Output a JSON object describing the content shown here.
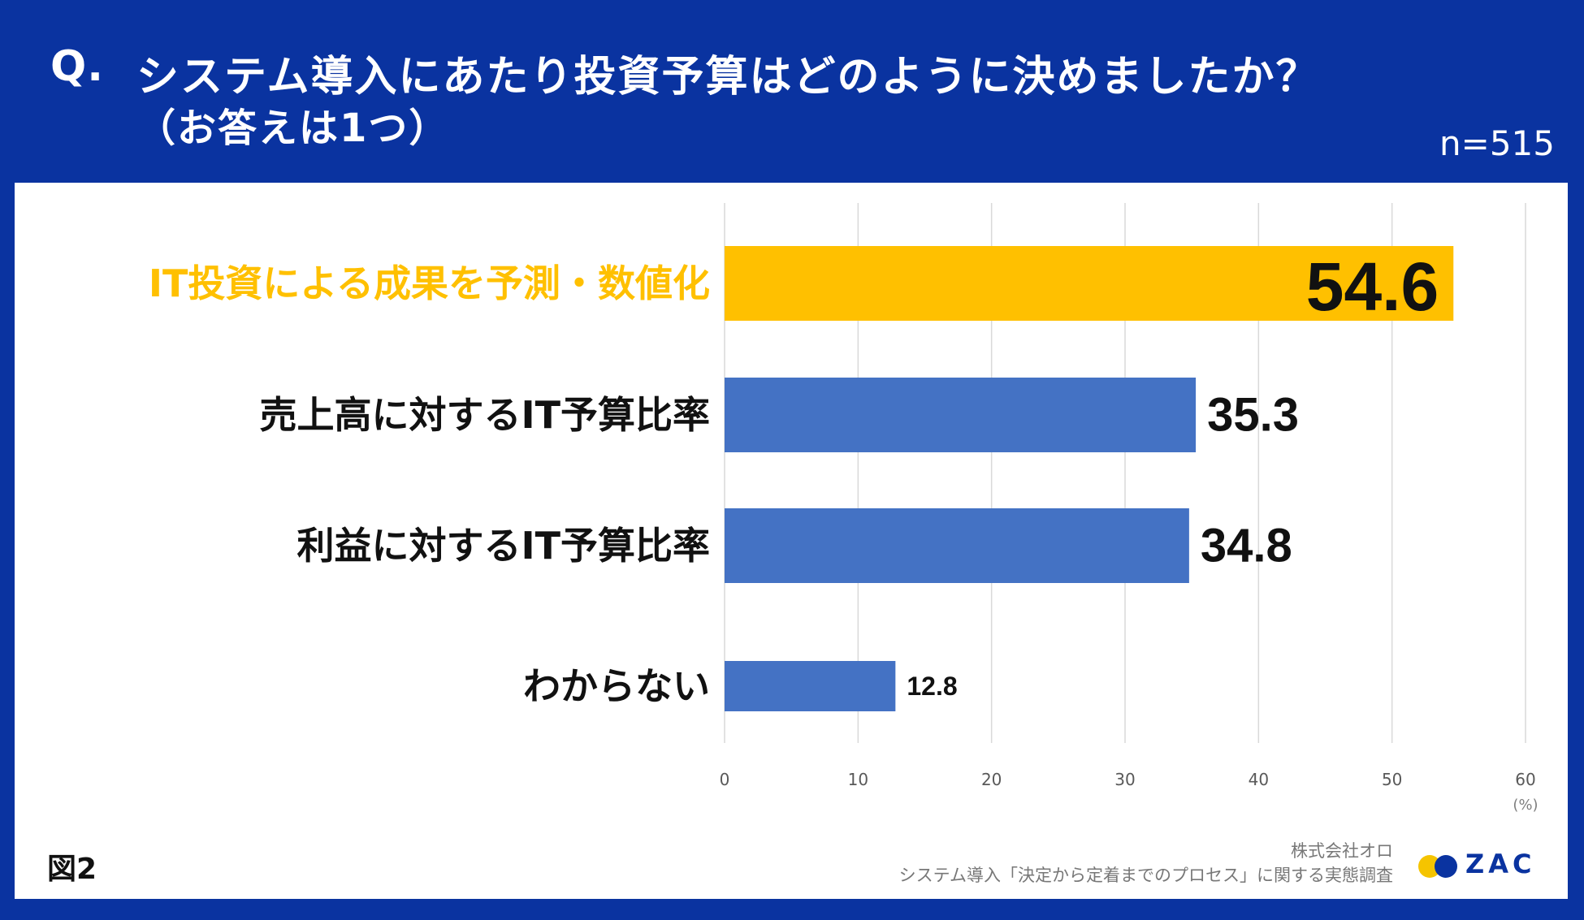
{
  "header": {
    "q_label": "Q.",
    "question_line1": "システム導入にあたり投資予算はどのように決めましたか？",
    "question_line2": "（お答えは1つ）",
    "sample_size": "n=515"
  },
  "footer": {
    "figure_label": "図2",
    "source_company": "株式会社オロ",
    "source_survey": "システム導入「決定から定着までのプロセス」に関する実態調査",
    "logo_text": "ZAC"
  },
  "colors": {
    "header_bg": "#0a33a0",
    "highlight": "#ffc000",
    "bar": "#4472c4",
    "grid": "#d9d9d9"
  },
  "chart_data": {
    "type": "bar",
    "orientation": "horizontal",
    "categories": [
      "IT投資による成果を予測・数値化",
      "売上高に対するIT予算比率",
      "利益に対するIT予算比率",
      "わからない"
    ],
    "values": [
      54.6,
      35.3,
      34.8,
      12.8
    ],
    "value_labels": [
      "54.6",
      "35.3",
      "34.8",
      "12.8"
    ],
    "highlight_index": 0,
    "xlim": [
      0,
      60
    ],
    "x_ticks": [
      0,
      10,
      20,
      30,
      40,
      50,
      60
    ],
    "x_tick_labels": [
      "0",
      "10",
      "20",
      "30",
      "40",
      "50",
      "60"
    ],
    "x_unit": "(%)",
    "grid": true
  }
}
